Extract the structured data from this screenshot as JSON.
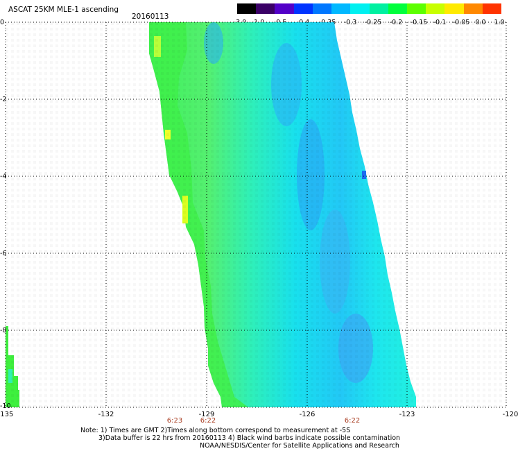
{
  "header": {
    "title": "ASCAT 25KM MLE-1 ascending",
    "date": "20160113"
  },
  "colorbar": {
    "labels": [
      "-3.0",
      "-1.0",
      "-0.5",
      "-0.4",
      "-0.35",
      "-0.3",
      "-0.25",
      "-0.2",
      "-0.15",
      "-0.1",
      "-0.05",
      "0.0",
      "1.0"
    ],
    "colors": [
      "#000000",
      "#3a0066",
      "#5200c8",
      "#0033ff",
      "#0077ff",
      "#00b8ff",
      "#00f0f0",
      "#00f0a0",
      "#00ff3c",
      "#5cff00",
      "#c8ff00",
      "#ffea00",
      "#ff8800",
      "#ff3300"
    ]
  },
  "axes": {
    "lon_ticks": [
      "-135",
      "-132",
      "-129",
      "-126",
      "-123",
      "-120"
    ],
    "lat_ticks": [
      "0",
      "-2",
      "-4",
      "-6",
      "-8",
      "-10"
    ]
  },
  "times": [
    "6:23",
    "6:22",
    "6:22"
  ],
  "notes": {
    "line1": "Note: 1) Times are GMT 2)Times along bottom correspond to measurement at -5S",
    "line2": "3)Data buffer is 22 hrs from 20160113 4) Black wind barbs indicate possible contamination",
    "line3": "NOAA/NESDIS/Center for Satellite Applications and Research"
  }
}
